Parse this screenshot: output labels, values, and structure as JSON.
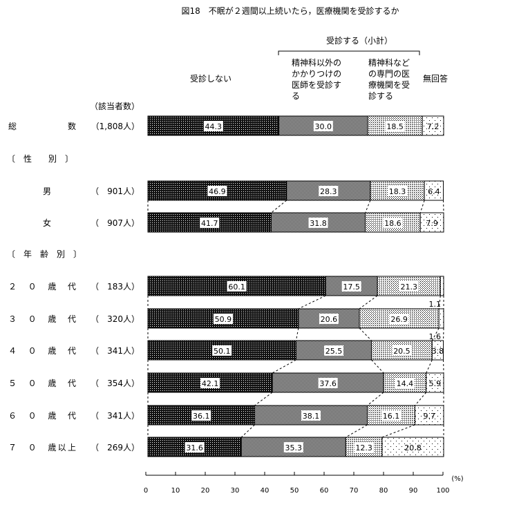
{
  "chart_data": {
    "type": "bar",
    "orientation": "horizontal",
    "stacked": true,
    "title": "図18　不眠が２週間以上続いたら，医療機関を受診するか",
    "group_header": "受診する（小計）",
    "count_header": "（該当者数）",
    "series": [
      {
        "name": "受診しない",
        "name_lines": [
          "受診しない"
        ],
        "color": "#111111"
      },
      {
        "name": "精神科以外のかかりつけの医師を受診する",
        "name_lines": [
          "精神科以外の",
          "かかりつけの",
          "医師を受診す",
          "る"
        ],
        "color": "#888888"
      },
      {
        "name": "精神科などの専門の医療機関を受診する",
        "name_lines": [
          "精神科など",
          "の専門の医",
          "療機関を受",
          "診する"
        ],
        "color": "#cccccc"
      },
      {
        "name": "無回答",
        "name_lines": [
          "無回答"
        ],
        "color": "#ffffff"
      }
    ],
    "sections": [
      "〔　性　　別　〕",
      "〔　年　齢　別　〕"
    ],
    "rows": [
      {
        "label": "総　　　　　　数",
        "count": "（1,808人）",
        "values": [
          44.3,
          30.0,
          18.5,
          7.2
        ]
      },
      {
        "label": "男",
        "count": "（　901人）",
        "values": [
          46.9,
          28.3,
          18.3,
          6.4
        ]
      },
      {
        "label": "女",
        "count": "（　907人）",
        "values": [
          41.7,
          31.8,
          18.6,
          7.9
        ]
      },
      {
        "label": "２　０　歳　代",
        "count": "（　183人）",
        "values": [
          60.1,
          17.5,
          21.3,
          1.1
        ]
      },
      {
        "label": "３　０　歳　代",
        "count": "（　320人）",
        "values": [
          50.9,
          20.6,
          26.9,
          1.6
        ]
      },
      {
        "label": "４　０　歳　代",
        "count": "（　341人）",
        "values": [
          50.1,
          25.5,
          20.5,
          3.8
        ]
      },
      {
        "label": "５　０　歳　代",
        "count": "（　354人）",
        "values": [
          42.1,
          37.6,
          14.4,
          5.9
        ]
      },
      {
        "label": "６　０　歳　代",
        "count": "（　341人）",
        "values": [
          36.1,
          38.1,
          16.1,
          9.7
        ]
      },
      {
        "label": "７　０　歳以上",
        "count": "（　269人）",
        "values": [
          31.6,
          35.3,
          12.3,
          20.8
        ]
      }
    ],
    "xlim": [
      0,
      100
    ],
    "xticks": [
      0,
      10,
      20,
      30,
      40,
      50,
      60,
      70,
      80,
      90,
      100
    ],
    "xunit": "(%)",
    "grid": false,
    "legend": "top"
  }
}
